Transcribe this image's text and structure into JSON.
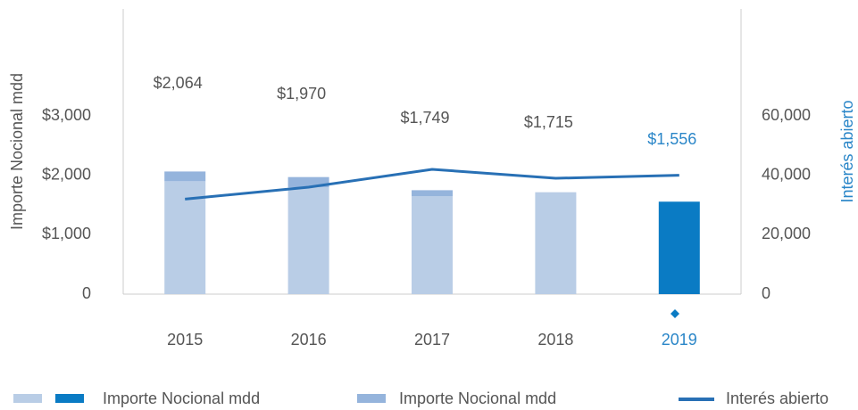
{
  "chart_data": {
    "type": "bar",
    "categories": [
      "2015",
      "2016",
      "2017",
      "2018",
      "2019"
    ],
    "series": [
      {
        "name": "Importe Nocional mdd",
        "color": "#b9cde6",
        "colors": [
          "#b9cde6",
          "#b9cde6",
          "#b9cde6",
          "#b9cde6",
          "#0a7bc4"
        ],
        "values": [
          1900,
          1800,
          1650,
          1715,
          1556
        ]
      },
      {
        "name": "Importe Nocional mdd",
        "color": "#95b4dc",
        "values": [
          164,
          170,
          99,
          0,
          0
        ]
      },
      {
        "name": "Interés abierto",
        "type": "line",
        "axis": "y2",
        "color": "#2870b5",
        "values": [
          32000,
          36000,
          42000,
          39000,
          40000
        ]
      }
    ],
    "data_labels": [
      "$2,064",
      "$1,970",
      "$1,749",
      "$1,715",
      "$1,556"
    ],
    "highlight_color": "#2a86c8",
    "ylabel": "Importe Nocional mdd",
    "y2label": "Interés abierto",
    "ylim": [
      0,
      4800
    ],
    "yticks": [
      0,
      {
        "value": 1000,
        "label": "$1,000"
      },
      {
        "value": 2000,
        "label": "$2,000"
      },
      {
        "value": 3000,
        "label": "$3,000"
      }
    ],
    "y2lim": [
      0,
      96000
    ],
    "y2ticks": [
      0,
      {
        "value": 20000,
        "label": "20,000"
      },
      {
        "value": 40000,
        "label": "40,000"
      },
      {
        "value": 60000,
        "label": "60,000"
      }
    ],
    "grid": false
  }
}
